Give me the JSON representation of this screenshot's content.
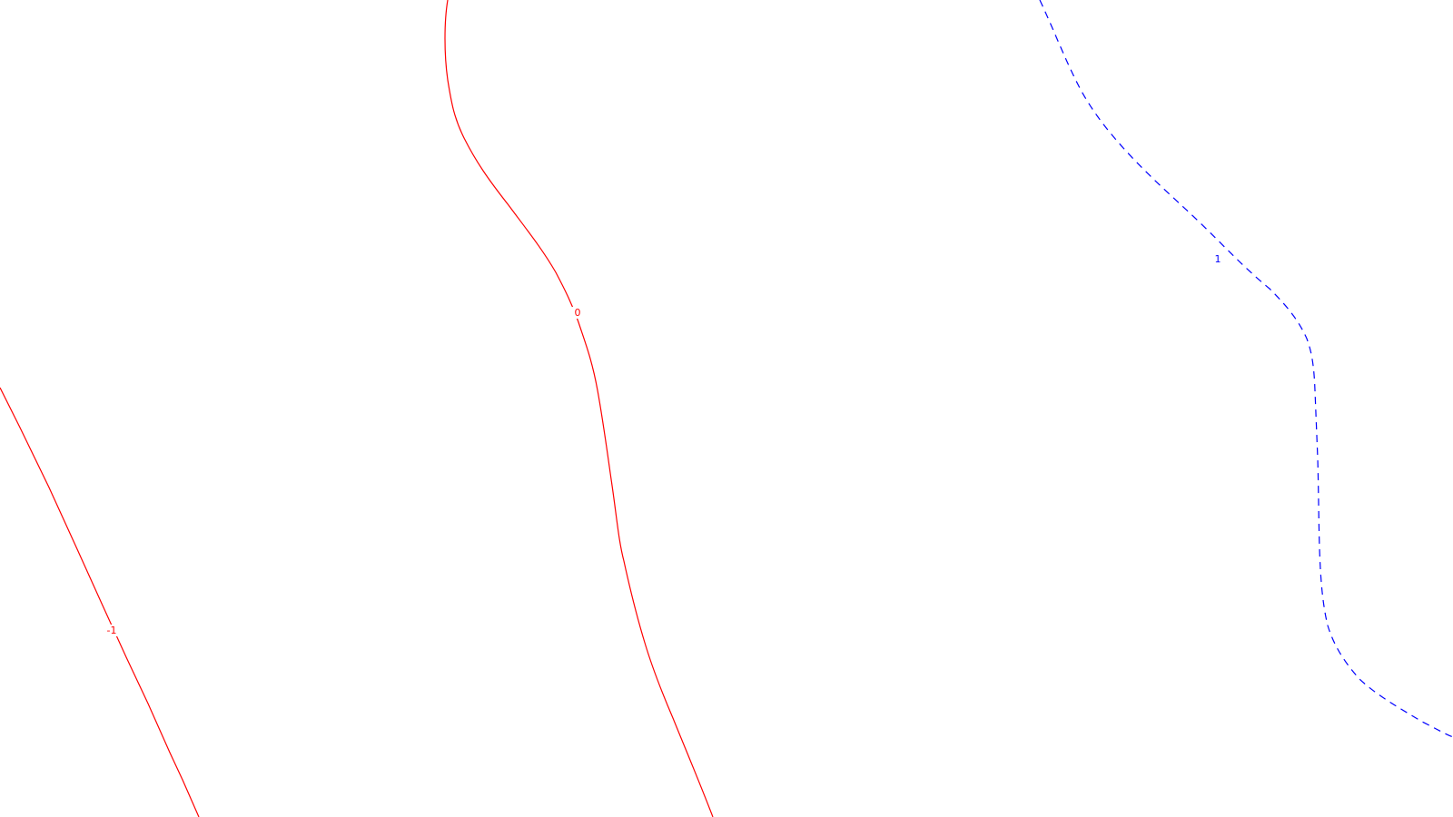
{
  "map": {
    "background_color": "#ffffff",
    "contours": [
      {
        "id": "contour-minus-1",
        "level": "-1",
        "color": "#ff0000",
        "line_style": "solid"
      },
      {
        "id": "contour-zero",
        "level": "0",
        "color": "#ff0000",
        "line_style": "solid"
      },
      {
        "id": "contour-plus-1",
        "level": "1",
        "color": "#0000ff",
        "line_style": "dashed"
      }
    ]
  }
}
